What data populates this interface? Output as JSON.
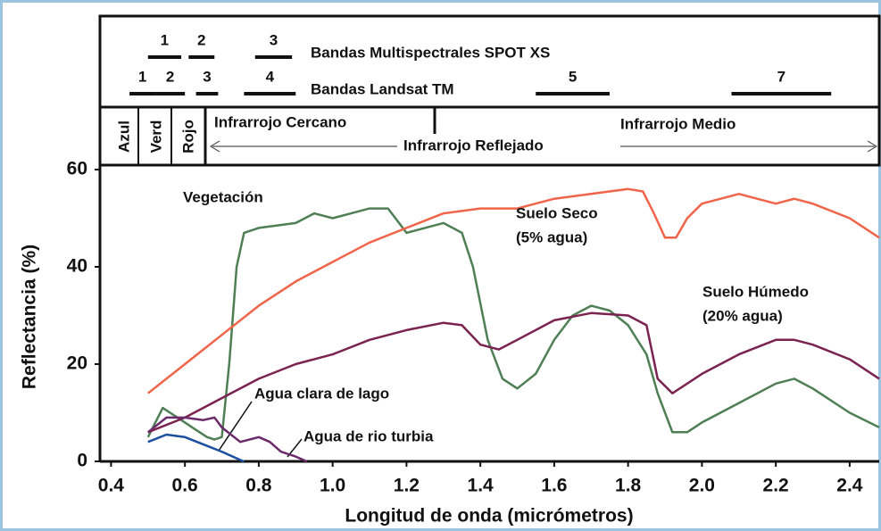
{
  "chart_data": {
    "type": "line",
    "xlabel": "Longitud de onda (micrómetros)",
    "ylabel": "Reflectancia (%)",
    "xlim": [
      0.37,
      2.48
    ],
    "ylim": [
      0,
      60
    ],
    "xticks": [
      0.4,
      0.6,
      0.8,
      {
        "value": 1,
        "label": "1.0"
      },
      1.2,
      1.4,
      1.6,
      1.8,
      {
        "value": 2,
        "label": "2.0"
      },
      2.2,
      2.4
    ],
    "yticks": [
      0,
      20,
      40,
      60
    ],
    "grid": false,
    "series": [
      {
        "name": "Vegetación",
        "color": "#4f7f55",
        "x": [
          0.5,
          0.54,
          0.58,
          0.62,
          0.66,
          0.68,
          0.7,
          0.72,
          0.74,
          0.76,
          0.8,
          0.9,
          0.95,
          1.0,
          1.05,
          1.1,
          1.15,
          1.18,
          1.2,
          1.25,
          1.3,
          1.35,
          1.38,
          1.42,
          1.46,
          1.5,
          1.55,
          1.6,
          1.65,
          1.7,
          1.75,
          1.8,
          1.85,
          1.88,
          1.92,
          1.96,
          2.0,
          2.1,
          2.2,
          2.25,
          2.3,
          2.4,
          2.48
        ],
        "values": [
          5,
          11,
          9,
          7,
          5,
          4.5,
          5,
          20,
          40,
          47,
          48,
          49,
          51,
          50,
          51,
          52,
          52,
          49,
          47,
          48,
          49,
          47,
          40,
          25,
          17,
          15,
          18,
          25,
          30,
          32,
          31,
          28,
          22,
          14,
          6,
          6,
          8,
          12,
          16,
          17,
          15,
          10,
          7
        ]
      },
      {
        "name": "Suelo Seco",
        "detail": "(5% agua)",
        "color": "#f0654a",
        "x": [
          0.5,
          0.6,
          0.7,
          0.8,
          0.9,
          1.0,
          1.1,
          1.2,
          1.3,
          1.4,
          1.5,
          1.6,
          1.7,
          1.8,
          1.84,
          1.87,
          1.9,
          1.93,
          1.96,
          2.0,
          2.1,
          2.2,
          2.25,
          2.3,
          2.4,
          2.48
        ],
        "values": [
          14,
          20,
          26,
          32,
          37,
          41,
          45,
          48,
          51,
          52,
          52,
          54,
          55,
          56,
          55.5,
          51,
          46,
          46,
          50,
          53,
          55,
          53,
          54,
          53,
          50,
          46
        ]
      },
      {
        "name": "Suelo Húmedo",
        "detail": "(20% agua)",
        "color": "#7b2350",
        "x": [
          0.5,
          0.6,
          0.7,
          0.8,
          0.9,
          1.0,
          1.1,
          1.2,
          1.3,
          1.35,
          1.4,
          1.45,
          1.5,
          1.6,
          1.7,
          1.8,
          1.85,
          1.88,
          1.92,
          2.0,
          2.1,
          2.2,
          2.25,
          2.3,
          2.4,
          2.48
        ],
        "values": [
          6,
          9,
          13,
          17,
          20,
          22,
          25,
          27,
          28.5,
          28,
          24,
          23,
          25,
          29,
          30.5,
          30,
          28,
          17,
          14,
          18,
          22,
          25,
          25,
          24,
          21,
          17
        ]
      },
      {
        "name": "Agua clara de lago",
        "color": "#1c4fa0",
        "x": [
          0.5,
          0.55,
          0.6,
          0.65,
          0.7,
          0.75,
          0.76
        ],
        "values": [
          4,
          5.5,
          5,
          3.5,
          2,
          0.3,
          0
        ]
      },
      {
        "name": "Agua de rio turbia",
        "color": "#6b2a6a",
        "x": [
          0.5,
          0.55,
          0.6,
          0.65,
          0.68,
          0.7,
          0.75,
          0.8,
          0.83,
          0.86,
          0.9,
          0.93
        ],
        "values": [
          6,
          9,
          9,
          8.5,
          9,
          7,
          4,
          5,
          4,
          2,
          1,
          0
        ]
      }
    ],
    "spot": {
      "title": "Bandas Multispectrales SPOT XS",
      "bands": [
        {
          "label": "1",
          "range": [
            0.5,
            0.59
          ]
        },
        {
          "label": "2",
          "range": [
            0.61,
            0.68
          ]
        },
        {
          "label": "3",
          "range": [
            0.79,
            0.89
          ]
        }
      ]
    },
    "landsat": {
      "title": "Bandas Landsat TM",
      "bands": [
        {
          "label": "1",
          "range": [
            0.45,
            0.52
          ]
        },
        {
          "label": "2",
          "range": [
            0.52,
            0.6
          ]
        },
        {
          "label": "3",
          "range": [
            0.63,
            0.69
          ]
        },
        {
          "label": "4",
          "range": [
            0.76,
            0.9
          ]
        },
        {
          "label": "5",
          "range": [
            1.55,
            1.75
          ]
        },
        {
          "label": "7",
          "range": [
            2.08,
            2.35
          ]
        }
      ]
    },
    "regions": {
      "blue": "Azul",
      "green": "Verd",
      "red": "Rojo",
      "near": "Infrarrojo Cercano",
      "mid": "Infrarrojo Medio",
      "reflected": "Infrarrojo Reflejado"
    }
  }
}
